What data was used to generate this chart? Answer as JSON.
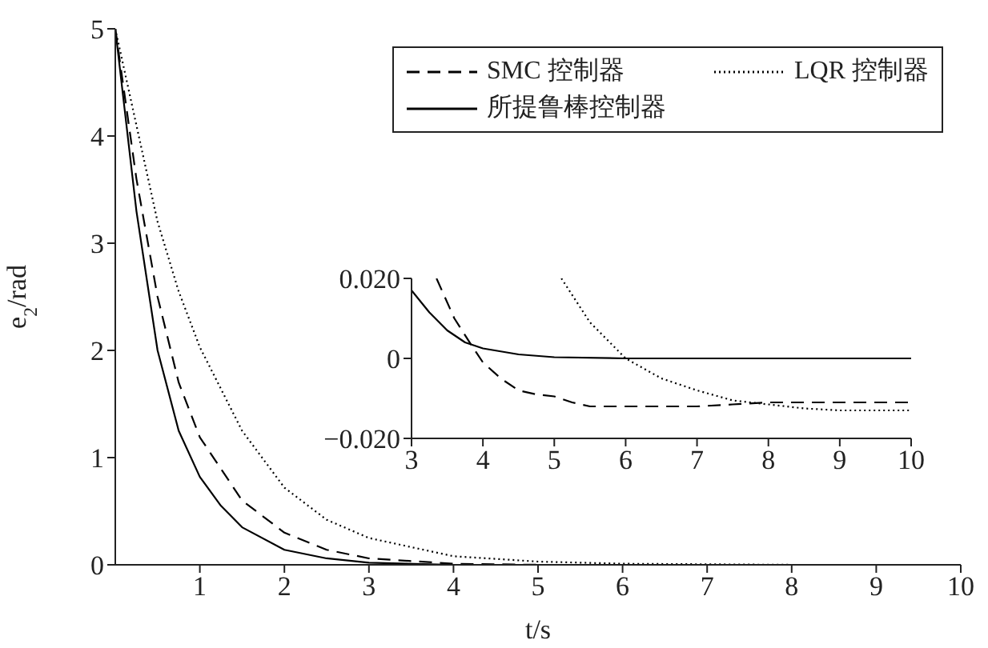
{
  "chart_data": [
    {
      "type": "line",
      "xlabel": "t/s",
      "ylabel": "e$_{2}$/rad",
      "xlim": [
        0,
        10
      ],
      "xticks": [
        1,
        2,
        3,
        4,
        5,
        6,
        7,
        8,
        9,
        10
      ],
      "ylim": [
        0,
        5
      ],
      "yticks": [
        0,
        1,
        2,
        3,
        4,
        5
      ],
      "legend": "top right",
      "marker": "none",
      "series": [
        {
          "name": "SMC 控制器",
          "color": "#000000",
          "line_style": "dashed",
          "x": [
            0,
            0.25,
            0.5,
            0.75,
            1,
            1.5,
            2,
            2.5,
            3,
            4,
            5,
            6
          ],
          "values": [
            5,
            3.6,
            2.5,
            1.7,
            1.19,
            0.6,
            0.3,
            0.14,
            0.06,
            0.01,
            0,
            0
          ]
        },
        {
          "name": "LQR 控制器",
          "color": "#000000",
          "line_style": "dotted",
          "x": [
            0,
            0.25,
            0.5,
            0.75,
            1,
            1.5,
            2,
            2.5,
            3,
            4,
            5,
            6,
            8,
            10
          ],
          "values": [
            5,
            4.1,
            3.2,
            2.55,
            2.03,
            1.25,
            0.72,
            0.42,
            0.25,
            0.08,
            0.03,
            0.01,
            0,
            0
          ]
        },
        {
          "name": "所提鲁棒控制器",
          "color": "#000000",
          "line_style": "solid",
          "x": [
            0,
            0.25,
            0.5,
            0.75,
            1,
            1.25,
            1.5,
            2,
            2.5,
            3,
            4,
            5
          ],
          "values": [
            5,
            3.3,
            2,
            1.25,
            0.82,
            0.55,
            0.35,
            0.14,
            0.06,
            0.02,
            0,
            0
          ]
        }
      ]
    },
    {
      "type": "line",
      "xlim": [
        3,
        10
      ],
      "xticks": [
        3,
        4,
        5,
        6,
        7,
        8,
        9,
        10
      ],
      "ylim": [
        -0.02,
        0.02
      ],
      "yticks": [
        {
          "value": -0.02,
          "label": "−0.020"
        },
        {
          "value": 0,
          "label": "0"
        },
        {
          "value": 0.02,
          "label": "0.020"
        }
      ],
      "marker": "none",
      "series": [
        {
          "color": "#000000",
          "line_style": "dashed",
          "x": [
            3.35,
            3.6,
            3.85,
            4,
            4.25,
            4.5,
            4.75,
            5,
            5.25,
            5.5,
            6,
            6.5,
            7,
            7.5,
            8,
            8.5,
            9,
            9.5,
            10
          ],
          "values": [
            0.02,
            0.01,
            0.003,
            -0.001,
            -0.005,
            -0.008,
            -0.009,
            -0.0095,
            -0.011,
            -0.012,
            -0.012,
            -0.012,
            -0.012,
            -0.0115,
            -0.011,
            -0.011,
            -0.011,
            -0.011,
            -0.011
          ]
        },
        {
          "color": "#000000",
          "line_style": "dotted",
          "x": [
            5.1,
            5.5,
            6,
            6.5,
            7,
            7.5,
            8,
            8.5,
            9,
            9.5,
            10
          ],
          "values": [
            0.02,
            0.009,
            0,
            -0.005,
            -0.008,
            -0.0105,
            -0.0115,
            -0.0125,
            -0.013,
            -0.013,
            -0.013
          ]
        },
        {
          "color": "#000000",
          "line_style": "solid",
          "x": [
            3,
            3.25,
            3.5,
            3.75,
            4,
            4.5,
            5,
            6,
            10
          ],
          "values": [
            0.017,
            0.0115,
            0.007,
            0.004,
            0.0025,
            0.001,
            0.0003,
            0,
            0
          ]
        }
      ]
    }
  ]
}
